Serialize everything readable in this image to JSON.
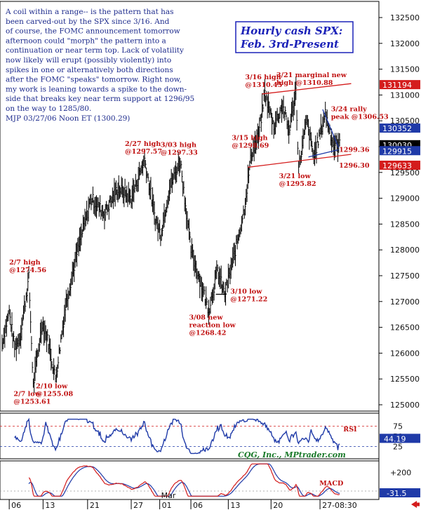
{
  "chart_data": {
    "type": "bar",
    "title": "Hourly cash SPX:",
    "subtitle": "Feb. 3rd-Present",
    "commentary": [
      "A coil within a range-- is the pattern that has",
      "been carved-out by the SPX since 3/16. And",
      "of course, the FOMC announcement tomorrow",
      "afternoon could \"morph\" the pattern into a",
      "continuation or near term top. Lack of volatility",
      "now likely will erupt (possibly violently) into",
      "spikes in one or alternatively both directions",
      "after the FOMC \"speaks\" tomorrow. Right now,",
      "my work is leaning towards a spike to the down-",
      "side that breaks key near term support at 1296/95",
      "on the way to 1285/80.",
      "MJP 03/27/06 Noon ET  (1300.29)"
    ],
    "credit": "CQG, Inc., MPtrader.com",
    "y_ticks": [
      "132500",
      "132000",
      "131500",
      "131000",
      "130500",
      "130000",
      "129500",
      "129000",
      "128500",
      "128000",
      "127500",
      "127000",
      "126500",
      "126000",
      "125500",
      "125000"
    ],
    "ylim": [
      1248,
      1329
    ],
    "x_ticks": [
      "06",
      "13",
      "21",
      "27",
      "01",
      "06",
      "13",
      "20",
      "27-08:30"
    ],
    "x_month_label": "Mar",
    "x_tick_index": [
      8,
      46,
      96,
      145,
      177,
      212,
      254,
      302,
      357
    ],
    "price_tags": [
      {
        "label": "131194",
        "value": 1311.94,
        "color": "#d41c1c"
      },
      {
        "label": "130352",
        "value": 1303.52,
        "color": "#1f3aa8"
      },
      {
        "label": "130030",
        "value": 1300.3,
        "color": "#000000"
      },
      {
        "label": "129915",
        "value": 1299.15,
        "color": "#1f3aa8"
      },
      {
        "label": "129633",
        "value": 1296.33,
        "color": "#d41c1c"
      }
    ],
    "annotations": [
      {
        "lines": [
          "2/7 high",
          "@1274.56"
        ],
        "idx": 30,
        "value": 1274.56,
        "pos": "above"
      },
      {
        "lines": [
          "2/7 low",
          "@1253.61"
        ],
        "idx": 35,
        "value": 1253.61,
        "pos": "below"
      },
      {
        "lines": [
          "2/10 low",
          "@1255.08"
        ],
        "idx": 60,
        "value": 1255.08,
        "pos": "below"
      },
      {
        "lines": [
          "2/27 high",
          "@1297.57"
        ],
        "idx": 160,
        "value": 1297.57,
        "pos": "above"
      },
      {
        "lines": [
          "3/03 high",
          "@1297.33"
        ],
        "idx": 200,
        "value": 1297.33,
        "pos": "above"
      },
      {
        "lines": [
          "3/08 new",
          "reaction low",
          "@1268.42"
        ],
        "idx": 232,
        "value": 1268.42,
        "pos": "below"
      },
      {
        "lines": [
          "3/10 low",
          "@1271.22"
        ],
        "idx": 250,
        "value": 1271.22,
        "pos": "right"
      },
      {
        "lines": [
          "3/15 high",
          "@1298.69"
        ],
        "idx": 280,
        "value": 1298.69,
        "pos": "above"
      },
      {
        "lines": [
          "3/16 high",
          "@1310.45"
        ],
        "idx": 295,
        "value": 1310.45,
        "pos": "above"
      },
      {
        "lines": [
          "3/21 marginal new",
          "high @1310.88"
        ],
        "idx": 330,
        "value": 1310.88,
        "pos": "above"
      },
      {
        "lines": [
          "3/24 rally",
          "peak @1306.53"
        ],
        "idx": 363,
        "value": 1306.53,
        "pos": "right"
      },
      {
        "lines": [
          "3/21 low",
          "@1295.82"
        ],
        "idx": 333,
        "value": 1295.82,
        "pos": "below"
      },
      {
        "lines": [
          "1299.36"
        ],
        "idx": 372,
        "value": 1299.36,
        "pos": "right"
      },
      {
        "lines": [
          "1296.30"
        ],
        "idx": 372,
        "value": 1296.3,
        "pos": "right"
      }
    ],
    "key_prices": [
      1253.61,
      1274.56,
      1255.08,
      1297.57,
      1268.42,
      1297.33,
      1271.22,
      1298.69,
      1310.45,
      1295.82,
      1310.88,
      1306.53,
      1300.3
    ],
    "rsi": {
      "label": "RSI",
      "ticks": [
        "75",
        "50",
        "25"
      ],
      "ylim": [
        0,
        100
      ],
      "last_label": "44.19",
      "last_value": 44.19
    },
    "macd": {
      "label": "MACD",
      "ticks": [
        "+200"
      ],
      "ylim": [
        -60,
        300
      ],
      "last_label": "-31.5",
      "last_value": -31.5
    }
  }
}
